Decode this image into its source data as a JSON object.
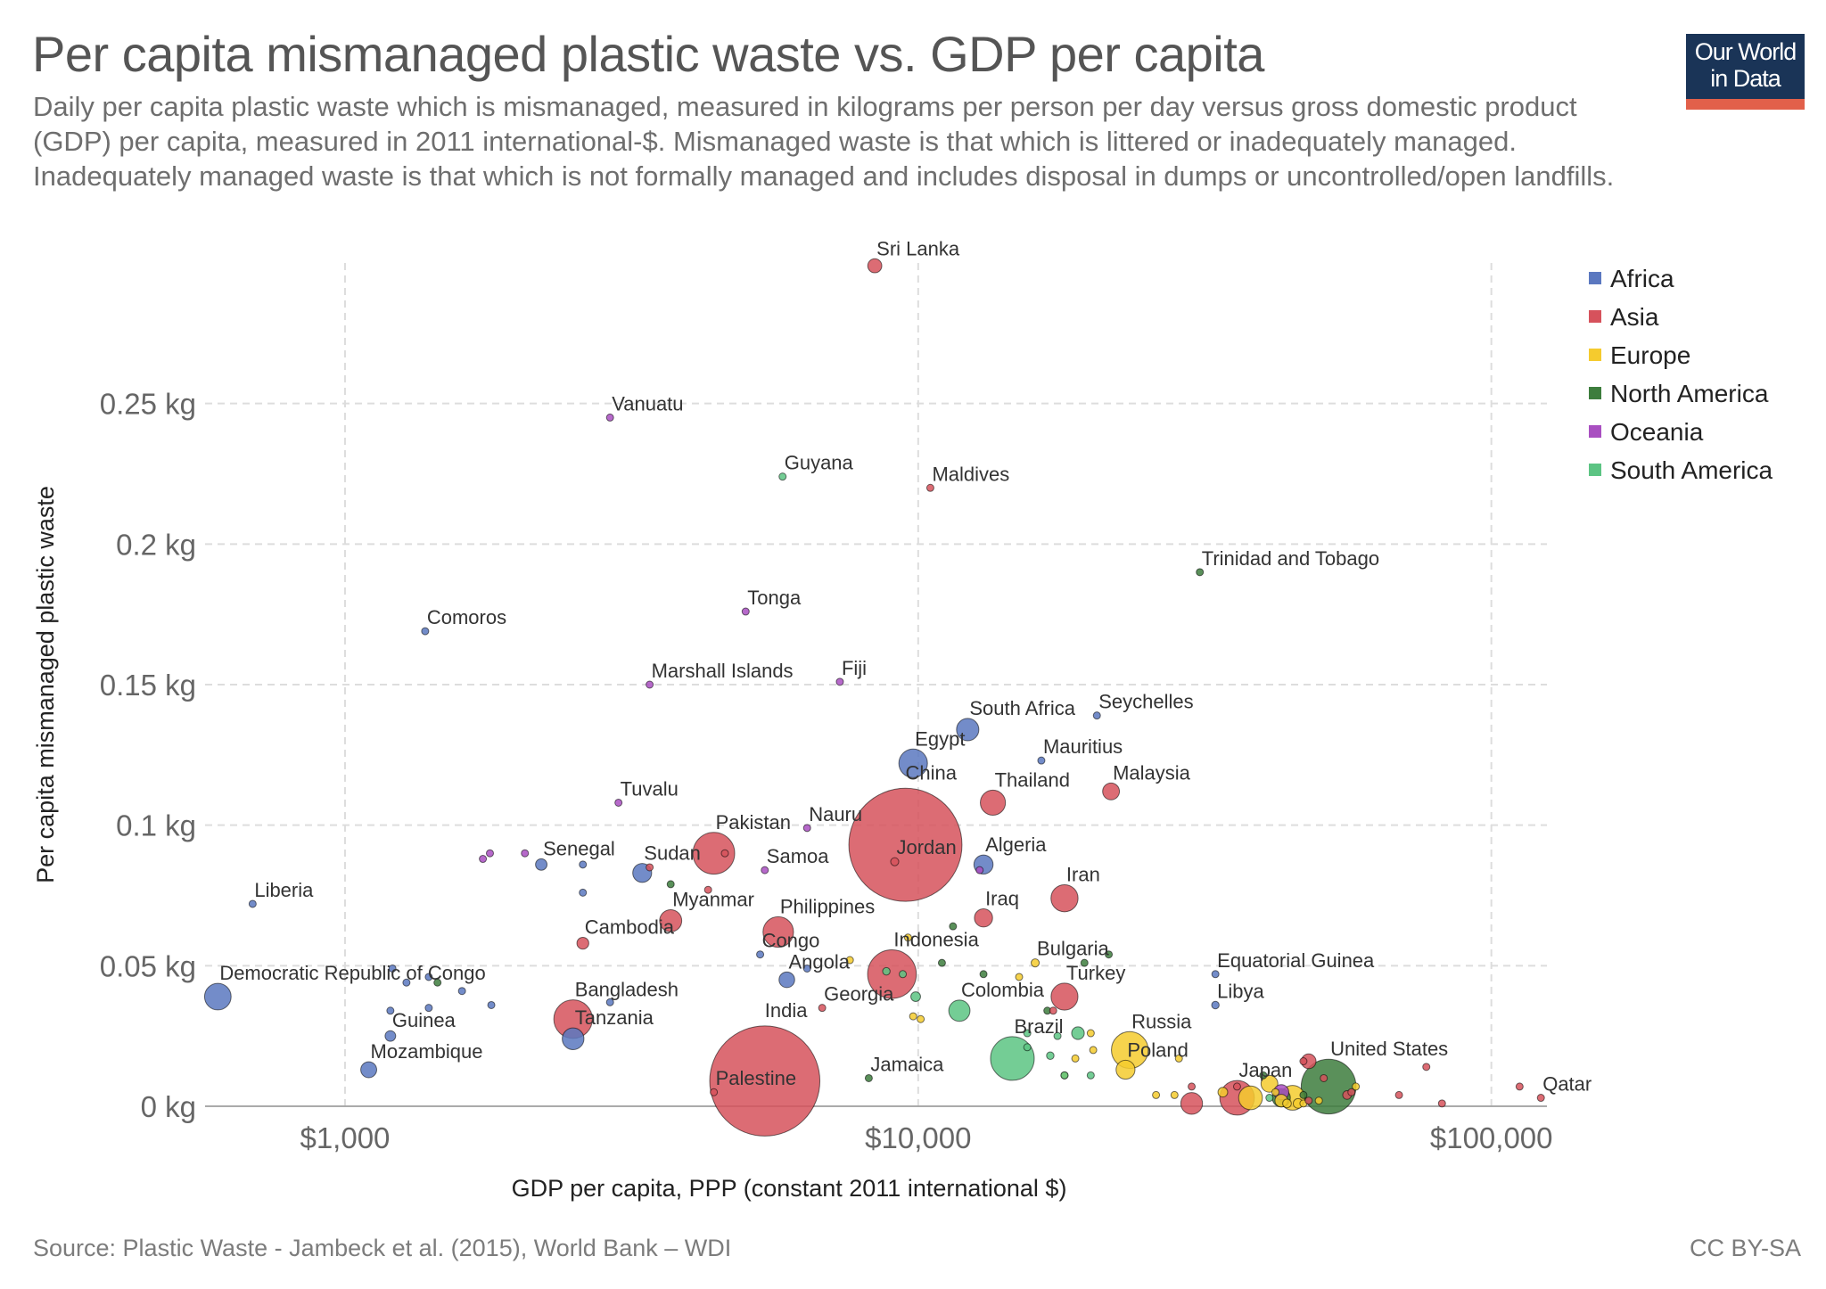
{
  "title": "Per capita mismanaged plastic waste vs. GDP per capita",
  "subtitle": "Daily per capita plastic waste which is mismanaged, measured in kilograms per person per day versus gross domestic product (GDP) per capita, measured in 2011 international-$. Mismanaged waste is that which is littered or inadequately managed. Inadequately managed waste is that which is not formally managed and includes disposal in dumps or uncontrolled/open landfills.",
  "logo": {
    "line1": "Our World",
    "line2": "in Data",
    "bg": "#1a3457",
    "accent": "#e2604a"
  },
  "source": "Source: Plastic Waste - Jambeck et al. (2015), World Bank – WDI",
  "license": "CC BY-SA",
  "chart_data": {
    "type": "scatter",
    "title": "Per capita mismanaged plastic waste vs. GDP per capita",
    "xlabel": "GDP per capita, PPP (constant 2011 international $)",
    "ylabel": "Per capita mismanaged plastic waste",
    "x_scale": "log",
    "xlim": [
      570,
      125000
    ],
    "ylim": [
      0,
      0.3
    ],
    "x_ticks": [
      {
        "value": 1000,
        "label": "$1,000"
      },
      {
        "value": 10000,
        "label": "$10,000"
      },
      {
        "value": 100000,
        "label": "$100,000"
      }
    ],
    "y_ticks": [
      {
        "value": 0,
        "label": "0 kg"
      },
      {
        "value": 0.05,
        "label": "0.05 kg"
      },
      {
        "value": 0.1,
        "label": "0.1 kg"
      },
      {
        "value": 0.15,
        "label": "0.15 kg"
      },
      {
        "value": 0.2,
        "label": "0.2 kg"
      },
      {
        "value": 0.25,
        "label": "0.25 kg"
      }
    ],
    "grid": true,
    "legend_position": "right",
    "legend": [
      {
        "name": "Africa",
        "color": "#5b78c0"
      },
      {
        "name": "Asia",
        "color": "#d6525c"
      },
      {
        "name": "Europe",
        "color": "#f5cb2e"
      },
      {
        "name": "North America",
        "color": "#3d7d3d"
      },
      {
        "name": "Oceania",
        "color": "#a94fc1"
      },
      {
        "name": "South America",
        "color": "#5cc483"
      }
    ],
    "points": [
      {
        "label": "Sri Lanka",
        "region": "Asia",
        "x": 8400,
        "y": 0.299,
        "pop": 21
      },
      {
        "label": "Vanuatu",
        "region": "Oceania",
        "x": 2900,
        "y": 0.245,
        "pop": 0.3
      },
      {
        "label": "Guyana",
        "region": "South America",
        "x": 5800,
        "y": 0.224,
        "pop": 0.8
      },
      {
        "label": "Maldives",
        "region": "Asia",
        "x": 10500,
        "y": 0.22,
        "pop": 0.4
      },
      {
        "label": "Trinidad and Tobago",
        "region": "North America",
        "x": 31000,
        "y": 0.19,
        "pop": 1.3
      },
      {
        "label": "Tonga",
        "region": "Oceania",
        "x": 5000,
        "y": 0.176,
        "pop": 0.1
      },
      {
        "label": "Comoros",
        "region": "Africa",
        "x": 1380,
        "y": 0.169,
        "pop": 0.8
      },
      {
        "label": "Marshall Islands",
        "region": "Oceania",
        "x": 3400,
        "y": 0.15,
        "pop": 0.05
      },
      {
        "label": "Fiji",
        "region": "Oceania",
        "x": 7300,
        "y": 0.151,
        "pop": 0.9
      },
      {
        "label": "Seychelles",
        "region": "Africa",
        "x": 20500,
        "y": 0.139,
        "pop": 0.09
      },
      {
        "label": "South Africa",
        "region": "Africa",
        "x": 12200,
        "y": 0.134,
        "pop": 53
      },
      {
        "label": "Egypt",
        "region": "Africa",
        "x": 9800,
        "y": 0.122,
        "pop": 87
      },
      {
        "label": "Mauritius",
        "region": "Africa",
        "x": 16400,
        "y": 0.123,
        "pop": 1.3
      },
      {
        "label": "Malaysia",
        "region": "Asia",
        "x": 21700,
        "y": 0.112,
        "pop": 30
      },
      {
        "label": "Thailand",
        "region": "Asia",
        "x": 13500,
        "y": 0.108,
        "pop": 67
      },
      {
        "label": "Tuvalu",
        "region": "Oceania",
        "x": 3000,
        "y": 0.108,
        "pop": 0.01
      },
      {
        "label": "Nauru",
        "region": "Oceania",
        "x": 6400,
        "y": 0.099,
        "pop": 0.01
      },
      {
        "label": "China",
        "region": "Asia",
        "x": 9500,
        "y": 0.093,
        "pop": 1360
      },
      {
        "label": "Pakistan",
        "region": "Asia",
        "x": 4400,
        "y": 0.09,
        "pop": 185
      },
      {
        "label": "Samoa",
        "region": "Oceania",
        "x": 5400,
        "y": 0.084,
        "pop": 0.2
      },
      {
        "label": "Sudan",
        "region": "Africa",
        "x": 3300,
        "y": 0.083,
        "pop": 38
      },
      {
        "label": "Senegal",
        "region": "Africa",
        "x": 2200,
        "y": 0.086,
        "pop": 14
      },
      {
        "label": "Jordan",
        "region": "Asia",
        "x": 9100,
        "y": 0.087,
        "pop": 7
      },
      {
        "label": "Algeria",
        "region": "Africa",
        "x": 13000,
        "y": 0.086,
        "pop": 39
      },
      {
        "label": "Iran",
        "region": "Asia",
        "x": 18000,
        "y": 0.074,
        "pop": 78
      },
      {
        "label": "Liberia",
        "region": "Africa",
        "x": 690,
        "y": 0.072,
        "pop": 4
      },
      {
        "label": "Myanmar",
        "region": "Asia",
        "x": 3700,
        "y": 0.066,
        "pop": 52
      },
      {
        "label": "Iraq",
        "region": "Asia",
        "x": 13000,
        "y": 0.067,
        "pop": 35
      },
      {
        "label": "Philippines",
        "region": "Asia",
        "x": 5700,
        "y": 0.062,
        "pop": 99
      },
      {
        "label": "Cambodia",
        "region": "Asia",
        "x": 2600,
        "y": 0.058,
        "pop": 15
      },
      {
        "label": "Congo",
        "region": "Africa",
        "x": 5300,
        "y": 0.054,
        "pop": 4.5
      },
      {
        "label": "Bulgaria",
        "region": "Europe",
        "x": 16000,
        "y": 0.051,
        "pop": 7
      },
      {
        "label": "Equatorial Guinea",
        "region": "Africa",
        "x": 33000,
        "y": 0.047,
        "pop": 1.1
      },
      {
        "label": "Angola",
        "region": "Africa",
        "x": 5900,
        "y": 0.045,
        "pop": 26
      },
      {
        "label": "Indonesia",
        "region": "Asia",
        "x": 9000,
        "y": 0.047,
        "pop": 252
      },
      {
        "label": "Democratic Republic of Congo",
        "region": "Africa",
        "x": 600,
        "y": 0.039,
        "pop": 75
      },
      {
        "label": "Turkey",
        "region": "Asia",
        "x": 18000,
        "y": 0.039,
        "pop": 77
      },
      {
        "label": "Bangladesh",
        "region": "Asia",
        "x": 2500,
        "y": 0.031,
        "pop": 158
      },
      {
        "label": "Georgia",
        "region": "Asia",
        "x": 6800,
        "y": 0.035,
        "pop": 4
      },
      {
        "label": "Colombia",
        "region": "South America",
        "x": 11800,
        "y": 0.034,
        "pop": 48
      },
      {
        "label": "Libya",
        "region": "Africa",
        "x": 33000,
        "y": 0.036,
        "pop": 6
      },
      {
        "label": "Guinea",
        "region": "Africa",
        "x": 1200,
        "y": 0.025,
        "pop": 12
      },
      {
        "label": "Tanzania",
        "region": "Africa",
        "x": 2500,
        "y": 0.024,
        "pop": 50
      },
      {
        "label": "Brazil",
        "region": "South America",
        "x": 14600,
        "y": 0.017,
        "pop": 203
      },
      {
        "label": "Russia",
        "region": "Europe",
        "x": 23400,
        "y": 0.02,
        "pop": 144
      },
      {
        "label": "India",
        "region": "Asia",
        "x": 5400,
        "y": 0.009,
        "pop": 1290
      },
      {
        "label": "Mozambique",
        "region": "Africa",
        "x": 1100,
        "y": 0.013,
        "pop": 27
      },
      {
        "label": "Poland",
        "region": "Europe",
        "x": 23000,
        "y": 0.013,
        "pop": 38
      },
      {
        "label": "Jamaica",
        "region": "North America",
        "x": 8200,
        "y": 0.01,
        "pop": 2.8
      },
      {
        "label": "United States",
        "region": "North America",
        "x": 52000,
        "y": 0.007,
        "pop": 319
      },
      {
        "label": "Japan",
        "region": "Asia",
        "x": 36000,
        "y": 0.003,
        "pop": 127
      },
      {
        "label": "Palestine",
        "region": "Asia",
        "x": 4400,
        "y": 0.005,
        "pop": 4.3
      },
      {
        "label": "Qatar",
        "region": "Asia",
        "x": 122000,
        "y": 0.003,
        "pop": 2.2
      },
      {
        "label": "",
        "region": "Oceania",
        "x": 1740,
        "y": 0.088,
        "pop": 0.1
      },
      {
        "label": "",
        "region": "Oceania",
        "x": 1790,
        "y": 0.09,
        "pop": 0.1
      },
      {
        "label": "",
        "region": "Oceania",
        "x": 2060,
        "y": 0.09,
        "pop": 0.3
      },
      {
        "label": "",
        "region": "Africa",
        "x": 2600,
        "y": 0.086,
        "pop": 1
      },
      {
        "label": "",
        "region": "Africa",
        "x": 2600,
        "y": 0.076,
        "pop": 0.5
      },
      {
        "label": "",
        "region": "North America",
        "x": 3700,
        "y": 0.079,
        "pop": 0.5
      },
      {
        "label": "",
        "region": "Asia",
        "x": 4300,
        "y": 0.077,
        "pop": 0.3
      },
      {
        "label": "",
        "region": "Asia",
        "x": 4600,
        "y": 0.09,
        "pop": 0.5
      },
      {
        "label": "",
        "region": "Africa",
        "x": 1280,
        "y": 0.044,
        "pop": 1
      },
      {
        "label": "",
        "region": "North America",
        "x": 1450,
        "y": 0.044,
        "pop": 1
      },
      {
        "label": "",
        "region": "Africa",
        "x": 1400,
        "y": 0.046,
        "pop": 1
      },
      {
        "label": "",
        "region": "Africa",
        "x": 1600,
        "y": 0.041,
        "pop": 1
      },
      {
        "label": "",
        "region": "Africa",
        "x": 1800,
        "y": 0.036,
        "pop": 1
      },
      {
        "label": "",
        "region": "Africa",
        "x": 1200,
        "y": 0.034,
        "pop": 1
      },
      {
        "label": "",
        "region": "Africa",
        "x": 1400,
        "y": 0.035,
        "pop": 1
      },
      {
        "label": "",
        "region": "Africa",
        "x": 2900,
        "y": 0.037,
        "pop": 1
      },
      {
        "label": "",
        "region": "Africa",
        "x": 1210,
        "y": 0.049,
        "pop": 0.5
      },
      {
        "label": "",
        "region": "Africa",
        "x": 6400,
        "y": 0.049,
        "pop": 1
      },
      {
        "label": "",
        "region": "Europe",
        "x": 7600,
        "y": 0.052,
        "pop": 3
      },
      {
        "label": "",
        "region": "Europe",
        "x": 9600,
        "y": 0.06,
        "pop": 0.5
      },
      {
        "label": "",
        "region": "South America",
        "x": 9900,
        "y": 0.039,
        "pop": 10
      },
      {
        "label": "",
        "region": "South America",
        "x": 8800,
        "y": 0.048,
        "pop": 6
      },
      {
        "label": "",
        "region": "North America",
        "x": 11500,
        "y": 0.064,
        "pop": 0.5
      },
      {
        "label": "",
        "region": "North America",
        "x": 11000,
        "y": 0.051,
        "pop": 0.5
      },
      {
        "label": "",
        "region": "North America",
        "x": 13000,
        "y": 0.047,
        "pop": 1
      },
      {
        "label": "",
        "region": "North America",
        "x": 16800,
        "y": 0.034,
        "pop": 0.5
      },
      {
        "label": "",
        "region": "Asia",
        "x": 17200,
        "y": 0.034,
        "pop": 0.5
      },
      {
        "label": "",
        "region": "North America",
        "x": 19500,
        "y": 0.051,
        "pop": 0.5
      },
      {
        "label": "",
        "region": "North America",
        "x": 21500,
        "y": 0.054,
        "pop": 0.5
      },
      {
        "label": "",
        "region": "South America",
        "x": 19000,
        "y": 0.026,
        "pop": 17
      },
      {
        "label": "",
        "region": "South America",
        "x": 17000,
        "y": 0.018,
        "pop": 6
      },
      {
        "label": "",
        "region": "South America",
        "x": 15500,
        "y": 0.021,
        "pop": 0.5
      },
      {
        "label": "",
        "region": "South America",
        "x": 20000,
        "y": 0.011,
        "pop": 3
      },
      {
        "label": "",
        "region": "South America",
        "x": 17500,
        "y": 0.025,
        "pop": 1
      },
      {
        "label": "",
        "region": "Europe",
        "x": 9800,
        "y": 0.032,
        "pop": 0.5
      },
      {
        "label": "",
        "region": "Europe",
        "x": 10100,
        "y": 0.031,
        "pop": 0.5
      },
      {
        "label": "",
        "region": "Europe",
        "x": 18000,
        "y": 0.011,
        "pop": 3
      },
      {
        "label": "",
        "region": "Europe",
        "x": 18800,
        "y": 0.017,
        "pop": 1
      },
      {
        "label": "",
        "region": "Europe",
        "x": 20200,
        "y": 0.02,
        "pop": 1
      },
      {
        "label": "",
        "region": "Europe",
        "x": 20000,
        "y": 0.026,
        "pop": 1
      },
      {
        "label": "",
        "region": "Europe",
        "x": 15000,
        "y": 0.046,
        "pop": 0.5
      },
      {
        "label": "",
        "region": "Europe",
        "x": 28000,
        "y": 0.004,
        "pop": 2
      },
      {
        "label": "",
        "region": "Europe",
        "x": 26000,
        "y": 0.004,
        "pop": 5
      },
      {
        "label": "",
        "region": "Europe",
        "x": 28500,
        "y": 0.017,
        "pop": 1
      },
      {
        "label": "",
        "region": "Europe",
        "x": 34000,
        "y": 0.005,
        "pop": 10
      },
      {
        "label": "",
        "region": "Europe",
        "x": 38000,
        "y": 0.003,
        "pop": 60
      },
      {
        "label": "",
        "region": "Europe",
        "x": 41000,
        "y": 0.008,
        "pop": 30
      },
      {
        "label": "",
        "region": "Europe",
        "x": 42000,
        "y": 0.005,
        "pop": 3
      },
      {
        "label": "",
        "region": "Europe",
        "x": 43000,
        "y": 0.002,
        "pop": 17
      },
      {
        "label": "",
        "region": "Europe",
        "x": 44000,
        "y": 0.001,
        "pop": 8
      },
      {
        "label": "",
        "region": "Europe",
        "x": 46000,
        "y": 0.001,
        "pop": 10
      },
      {
        "label": "",
        "region": "Europe",
        "x": 45000,
        "y": 0.003,
        "pop": 65
      },
      {
        "label": "",
        "region": "Europe",
        "x": 47000,
        "y": 0.001,
        "pop": 5
      },
      {
        "label": "",
        "region": "Europe",
        "x": 50000,
        "y": 0.002,
        "pop": 5
      },
      {
        "label": "",
        "region": "Europe",
        "x": 58000,
        "y": 0.007,
        "pop": 5
      },
      {
        "label": "",
        "region": "Asia",
        "x": 30000,
        "y": 0.001,
        "pop": 50
      },
      {
        "label": "",
        "region": "Asia",
        "x": 30000,
        "y": 0.007,
        "pop": 1
      },
      {
        "label": "",
        "region": "Asia",
        "x": 36000,
        "y": 0.007,
        "pop": 1
      },
      {
        "label": "",
        "region": "Asia",
        "x": 48000,
        "y": 0.016,
        "pop": 23
      },
      {
        "label": "",
        "region": "Asia",
        "x": 51000,
        "y": 0.01,
        "pop": 4
      },
      {
        "label": "",
        "region": "Asia",
        "x": 56000,
        "y": 0.004,
        "pop": 8
      },
      {
        "label": "",
        "region": "Asia",
        "x": 57000,
        "y": 0.005,
        "pop": 5
      },
      {
        "label": "",
        "region": "Asia",
        "x": 69000,
        "y": 0.004,
        "pop": 1
      },
      {
        "label": "",
        "region": "Asia",
        "x": 77000,
        "y": 0.014,
        "pop": 1
      },
      {
        "label": "",
        "region": "Asia",
        "x": 82000,
        "y": 0.001,
        "pop": 1
      },
      {
        "label": "",
        "region": "Asia",
        "x": 112000,
        "y": 0.007,
        "pop": 1
      },
      {
        "label": "",
        "region": "Asia",
        "x": 48000,
        "y": 0.002,
        "pop": 1
      },
      {
        "label": "",
        "region": "Asia",
        "x": 47000,
        "y": 0.016,
        "pop": 1
      },
      {
        "label": "",
        "region": "Asia",
        "x": 3400,
        "y": 0.085,
        "pop": 1
      },
      {
        "label": "",
        "region": "North America",
        "x": 40000,
        "y": 0.011,
        "pop": 1
      },
      {
        "label": "",
        "region": "North America",
        "x": 43000,
        "y": 0.003,
        "pop": 35
      },
      {
        "label": "",
        "region": "North America",
        "x": 47000,
        "y": 0.004,
        "pop": 1
      },
      {
        "label": "",
        "region": "Oceania",
        "x": 12800,
        "y": 0.084,
        "pop": 0.1
      },
      {
        "label": "",
        "region": "Oceania",
        "x": 43000,
        "y": 0.005,
        "pop": 24
      },
      {
        "label": "",
        "region": "South America",
        "x": 9400,
        "y": 0.047,
        "pop": 5
      },
      {
        "label": "",
        "region": "South America",
        "x": 15500,
        "y": 0.026,
        "pop": 1
      },
      {
        "label": "",
        "region": "South America",
        "x": 18000,
        "y": 0.011,
        "pop": 1
      },
      {
        "label": "",
        "region": "South America",
        "x": 41000,
        "y": 0.003,
        "pop": 3
      }
    ]
  }
}
